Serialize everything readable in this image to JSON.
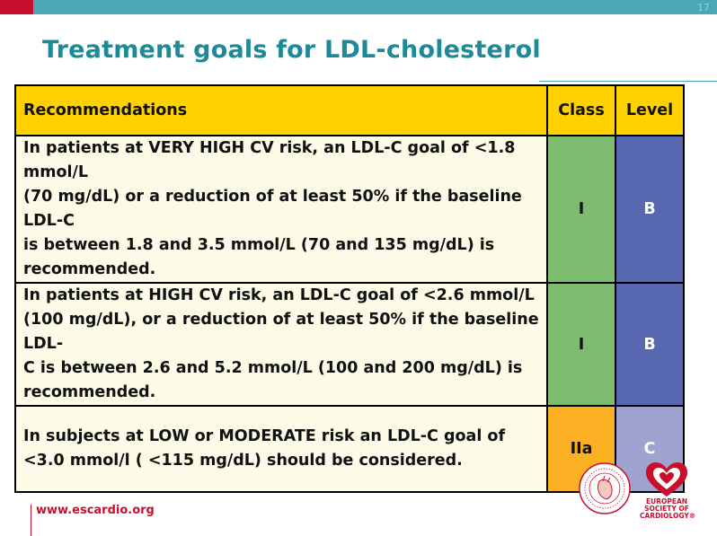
{
  "slide": {
    "title": "Treatment goals for LDL-cholesterol",
    "page_number": "17"
  },
  "table": {
    "headers": {
      "recommendations": "Recommendations",
      "class": "Class",
      "level": "Level"
    },
    "rows": [
      {
        "line1": "In patients at VERY HIGH CV risk, an LDL-C goal of <1.8 mmol/L",
        "line2": "(70 mg/dL) or a reduction of at least 50% if the baseline LDL-C",
        "line3": "is between 1.8 and 3.5 mmol/L (70 and 135 mg/dL) is",
        "line4": "recommended.",
        "class": "I",
        "level": "B"
      },
      {
        "line1": "In patients at HIGH CV risk, an LDL-C goal of <2.6 mmol/L",
        "line2": "(100 mg/dL), or a reduction of at least 50% if the baseline LDL-",
        "line3": "C is between 2.6 and 5.2 mmol/L (100 and 200 mg/dL) is",
        "line4": "recommended.",
        "class": "I",
        "level": "B"
      },
      {
        "line1": "In subjects at LOW or MODERATE risk an LDL-C goal of",
        "line2": "<3.0 mmol/l ( <115 mg/dL) should be considered.",
        "class": "IIa",
        "level": "C"
      }
    ]
  },
  "footer": {
    "url": "www.escardio.org",
    "logo_text": [
      "EUROPEAN",
      "SOCIETY OF",
      "CARDIOLOGY®"
    ]
  },
  "colors": {
    "accent_teal": "#4aa9b5",
    "title_teal": "#1f8a97",
    "brand_red": "#c8102e",
    "header_yellow": "#fed200",
    "class_green": "#7dbb6e",
    "class_orange": "#fbb123",
    "level_blue": "#5868b0",
    "level_light_blue": "#9ea4cf"
  }
}
